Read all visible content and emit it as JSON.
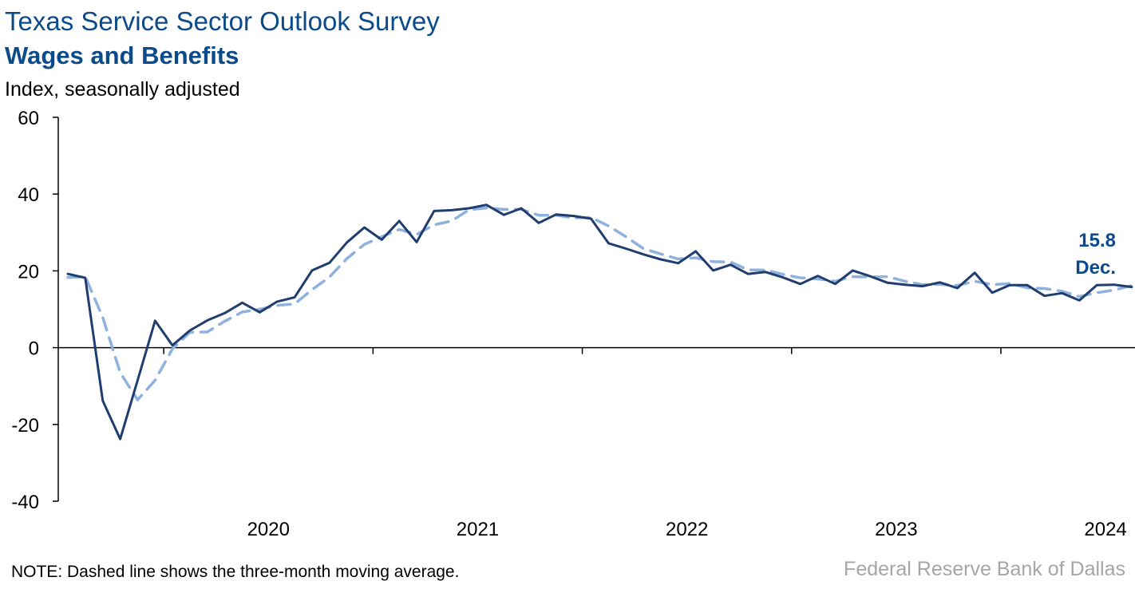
{
  "header": {
    "title": "Texas Service Sector Outlook Survey",
    "subtitle": "Wages and Benefits",
    "units": "Index, seasonally adjusted"
  },
  "footer": {
    "note": "NOTE: Dashed line shows the three-month moving average.",
    "source": "Federal Reserve Bank of Dallas"
  },
  "colors": {
    "series": "#1f3d6e",
    "moving_average": "#8eb1de",
    "title": "#0b4a8b"
  },
  "chart_data": {
    "type": "line",
    "title": "Wages and Benefits",
    "ylabel": "Index, seasonally adjusted",
    "ylim": [
      -40,
      60
    ],
    "yticks": [
      -40,
      -20,
      0,
      20,
      40,
      60
    ],
    "xlabels": [
      "2020",
      "2021",
      "2022",
      "2023",
      "2024"
    ],
    "x_start": "2019-07",
    "x_end": "2024-12",
    "grid": false,
    "series": [
      {
        "name": "",
        "style": "solid",
        "values": [
          19.2,
          18.2,
          -13.8,
          -23.8,
          -8.5,
          7.0,
          0.6,
          4.5,
          7.1,
          9.0,
          11.7,
          9.2,
          12.0,
          13.1,
          20.1,
          22.1,
          27.4,
          31.3,
          28.1,
          33.0,
          27.5,
          35.6,
          35.8,
          36.3,
          37.2,
          34.6,
          36.3,
          32.5,
          34.7,
          34.3,
          33.6,
          27.2,
          25.8,
          24.3,
          23.0,
          22.0,
          25.1,
          20.1,
          21.6,
          19.2,
          19.7,
          18.3,
          16.6,
          18.7,
          16.6,
          20.1,
          18.6,
          16.9,
          16.4,
          16.0,
          17.0,
          15.5,
          19.5,
          14.3,
          16.3,
          16.3,
          13.5,
          14.2,
          12.3,
          16.3,
          16.4,
          15.8
        ]
      },
      {
        "name": "",
        "style": "dashed",
        "values": [
          18.3,
          18.5,
          7.9,
          -6.5,
          -13.6,
          -8.5,
          -0.3,
          4.0,
          4.1,
          6.9,
          9.3,
          10.0,
          11.0,
          11.4,
          15.1,
          18.4,
          23.2,
          26.9,
          28.9,
          30.8,
          29.5,
          32.0,
          33.0,
          35.9,
          36.4,
          36.0,
          36.0,
          34.5,
          34.5,
          33.8,
          33.9,
          31.7,
          28.9,
          25.8,
          24.4,
          23.1,
          23.4,
          22.4,
          22.3,
          20.3,
          20.2,
          19.1,
          18.2,
          17.9,
          17.3,
          18.5,
          18.4,
          18.5,
          17.3,
          16.4,
          16.5,
          16.2,
          17.3,
          16.4,
          16.7,
          15.6,
          15.4,
          14.7,
          13.3,
          14.3,
          15.0,
          16.2
        ]
      }
    ],
    "annotations": [
      {
        "text": "15.8",
        "bold": true
      },
      {
        "text": "Dec.",
        "bold": true
      }
    ]
  }
}
